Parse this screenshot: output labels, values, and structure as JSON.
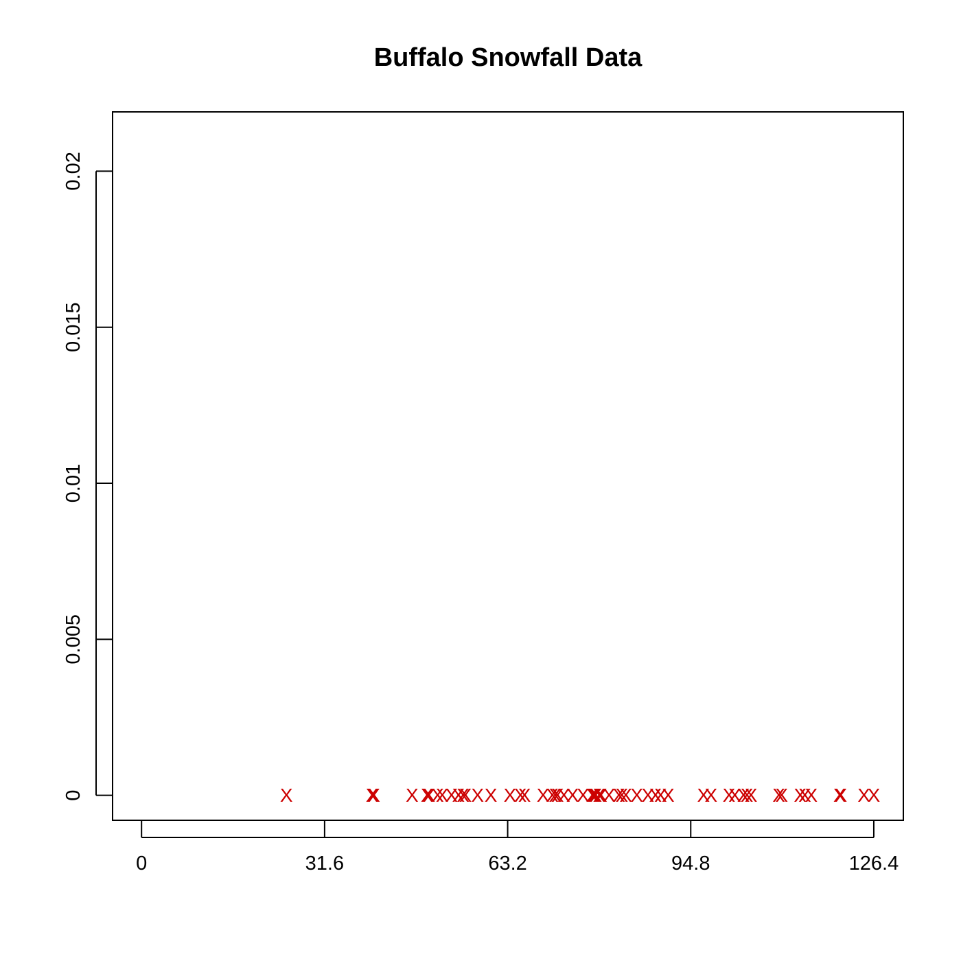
{
  "chart_data": {
    "type": "scatter",
    "title": "Buffalo Snowfall Data",
    "xlabel": "",
    "ylabel": "",
    "xlim": [
      -5,
      131.5
    ],
    "ylim": [
      -0.0008,
      0.0219
    ],
    "x_ticks": [
      0,
      31.6,
      63.2,
      94.8,
      126.4
    ],
    "x_tick_labels": [
      "0",
      "31.6",
      "63.2",
      "94.8",
      "126.4"
    ],
    "y_ticks": [
      0,
      0.005,
      0.01,
      0.015,
      0.02
    ],
    "y_tick_labels": [
      "0",
      "0.005",
      "0.01",
      "0.015",
      "0.02"
    ],
    "marker": "X",
    "marker_color": "#cc0000",
    "grid": false,
    "legend": "none",
    "points": [
      {
        "x": 25.0,
        "y": 0
      },
      {
        "x": 39.8,
        "y": 0
      },
      {
        "x": 40.1,
        "y": 0
      },
      {
        "x": 46.7,
        "y": 0
      },
      {
        "x": 49.3,
        "y": 0
      },
      {
        "x": 49.6,
        "y": 0
      },
      {
        "x": 51.1,
        "y": 0
      },
      {
        "x": 51.9,
        "y": 0
      },
      {
        "x": 53.5,
        "y": 0
      },
      {
        "x": 54.7,
        "y": 0
      },
      {
        "x": 55.5,
        "y": 0
      },
      {
        "x": 55.9,
        "y": 0
      },
      {
        "x": 58.0,
        "y": 0
      },
      {
        "x": 60.3,
        "y": 0
      },
      {
        "x": 63.6,
        "y": 0
      },
      {
        "x": 65.4,
        "y": 0
      },
      {
        "x": 66.1,
        "y": 0
      },
      {
        "x": 69.3,
        "y": 0
      },
      {
        "x": 70.9,
        "y": 0
      },
      {
        "x": 71.4,
        "y": 0
      },
      {
        "x": 71.8,
        "y": 0
      },
      {
        "x": 72.9,
        "y": 0
      },
      {
        "x": 74.4,
        "y": 0
      },
      {
        "x": 76.2,
        "y": 0
      },
      {
        "x": 77.8,
        "y": 0
      },
      {
        "x": 78.1,
        "y": 0
      },
      {
        "x": 78.4,
        "y": 0
      },
      {
        "x": 79.0,
        "y": 0
      },
      {
        "x": 79.3,
        "y": 0
      },
      {
        "x": 80.7,
        "y": 0
      },
      {
        "x": 82.4,
        "y": 0
      },
      {
        "x": 82.9,
        "y": 0
      },
      {
        "x": 83.6,
        "y": 0
      },
      {
        "x": 85.5,
        "y": 0
      },
      {
        "x": 87.4,
        "y": 0
      },
      {
        "x": 88.7,
        "y": 0
      },
      {
        "x": 89.6,
        "y": 0
      },
      {
        "x": 90.9,
        "y": 0
      },
      {
        "x": 97.0,
        "y": 0
      },
      {
        "x": 98.3,
        "y": 0
      },
      {
        "x": 101.4,
        "y": 0
      },
      {
        "x": 102.4,
        "y": 0
      },
      {
        "x": 103.9,
        "y": 0
      },
      {
        "x": 104.5,
        "y": 0
      },
      {
        "x": 105.2,
        "y": 0
      },
      {
        "x": 110.0,
        "y": 0
      },
      {
        "x": 110.5,
        "y": 0
      },
      {
        "x": 113.7,
        "y": 0
      },
      {
        "x": 114.5,
        "y": 0
      },
      {
        "x": 115.6,
        "y": 0
      },
      {
        "x": 120.5,
        "y": 0
      },
      {
        "x": 120.7,
        "y": 0
      },
      {
        "x": 124.7,
        "y": 0
      },
      {
        "x": 126.4,
        "y": 0
      }
    ]
  }
}
